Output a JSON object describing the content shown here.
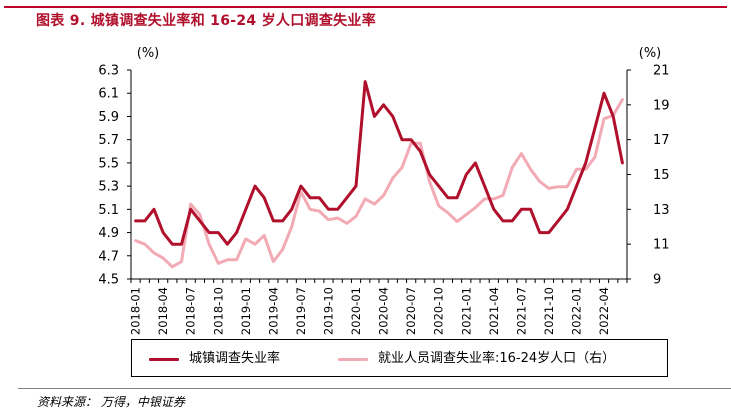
{
  "title": "图表 9. 城镇调查失业率和 16-24 岁人口调查失业率",
  "source": "资料来源： 万得，中银证券",
  "colors": {
    "title": "#b0102c",
    "series1": "#b0102c",
    "series2": "#f2aab4",
    "rule": "#c0002c"
  },
  "chart_data": {
    "type": "line",
    "x": [
      "2018-01",
      "2018-02",
      "2018-03",
      "2018-04",
      "2018-05",
      "2018-06",
      "2018-07",
      "2018-08",
      "2018-09",
      "2018-10",
      "2018-11",
      "2018-12",
      "2019-01",
      "2019-02",
      "2019-03",
      "2019-04",
      "2019-05",
      "2019-06",
      "2019-07",
      "2019-08",
      "2019-09",
      "2019-10",
      "2019-11",
      "2019-12",
      "2020-01",
      "2020-02",
      "2020-03",
      "2020-04",
      "2020-05",
      "2020-06",
      "2020-07",
      "2020-08",
      "2020-09",
      "2020-10",
      "2020-11",
      "2020-12",
      "2021-01",
      "2021-02",
      "2021-03",
      "2021-04",
      "2021-05",
      "2021-06",
      "2021-07",
      "2021-08",
      "2021-09",
      "2021-10",
      "2021-11",
      "2021-12",
      "2022-01",
      "2022-02",
      "2022-03",
      "2022-04",
      "2022-05",
      "2022-06"
    ],
    "xticks": [
      "2018-01",
      "2018-04",
      "2018-07",
      "2018-10",
      "2019-01",
      "2019-04",
      "2019-07",
      "2019-10",
      "2020-01",
      "2020-04",
      "2020-07",
      "2020-10",
      "2021-01",
      "2021-04",
      "2021-07",
      "2021-10",
      "2022-01",
      "2022-04"
    ],
    "left_axis": {
      "unit": "(%)",
      "ylim": [
        4.5,
        6.3
      ],
      "ticks": [
        "6.3",
        "6.1",
        "5.9",
        "5.7",
        "5.5",
        "5.3",
        "5.1",
        "4.9",
        "4.7",
        "4.5"
      ]
    },
    "right_axis": {
      "unit": "(%)",
      "ylim": [
        9,
        21
      ],
      "ticks": [
        "21",
        "19",
        "17",
        "15",
        "13",
        "11",
        "9"
      ]
    },
    "series": [
      {
        "name": "城镇调查失业率",
        "axis": "left",
        "values": [
          5.0,
          5.0,
          5.1,
          4.9,
          4.8,
          4.8,
          5.1,
          5.0,
          4.9,
          4.9,
          4.8,
          4.9,
          5.1,
          5.3,
          5.2,
          5.0,
          5.0,
          5.1,
          5.3,
          5.2,
          5.2,
          5.1,
          5.1,
          5.2,
          5.3,
          6.2,
          5.9,
          6.0,
          5.9,
          5.7,
          5.7,
          5.6,
          5.4,
          5.3,
          5.2,
          5.2,
          5.4,
          5.5,
          5.3,
          5.1,
          5.0,
          5.0,
          5.1,
          5.1,
          4.9,
          4.9,
          5.0,
          5.1,
          5.3,
          5.5,
          5.8,
          6.1,
          5.9,
          5.5
        ]
      },
      {
        "name": "就业人员调查失业率:16-24岁人口（右）",
        "axis": "right",
        "values": [
          11.2,
          11.0,
          10.5,
          10.2,
          9.7,
          10.0,
          13.3,
          12.7,
          11.0,
          9.9,
          10.1,
          10.1,
          11.3,
          11.0,
          11.5,
          10.0,
          10.7,
          12.0,
          14.0,
          13.0,
          12.9,
          12.4,
          12.5,
          12.2,
          12.6,
          13.6,
          13.3,
          13.8,
          14.8,
          15.4,
          16.8,
          16.8,
          14.6,
          13.2,
          12.8,
          12.3,
          12.7,
          13.1,
          13.6,
          13.6,
          13.8,
          15.4,
          16.2,
          15.3,
          14.6,
          14.2,
          14.3,
          14.3,
          15.3,
          15.3,
          16.0,
          18.2,
          18.4,
          19.3
        ]
      }
    ]
  }
}
